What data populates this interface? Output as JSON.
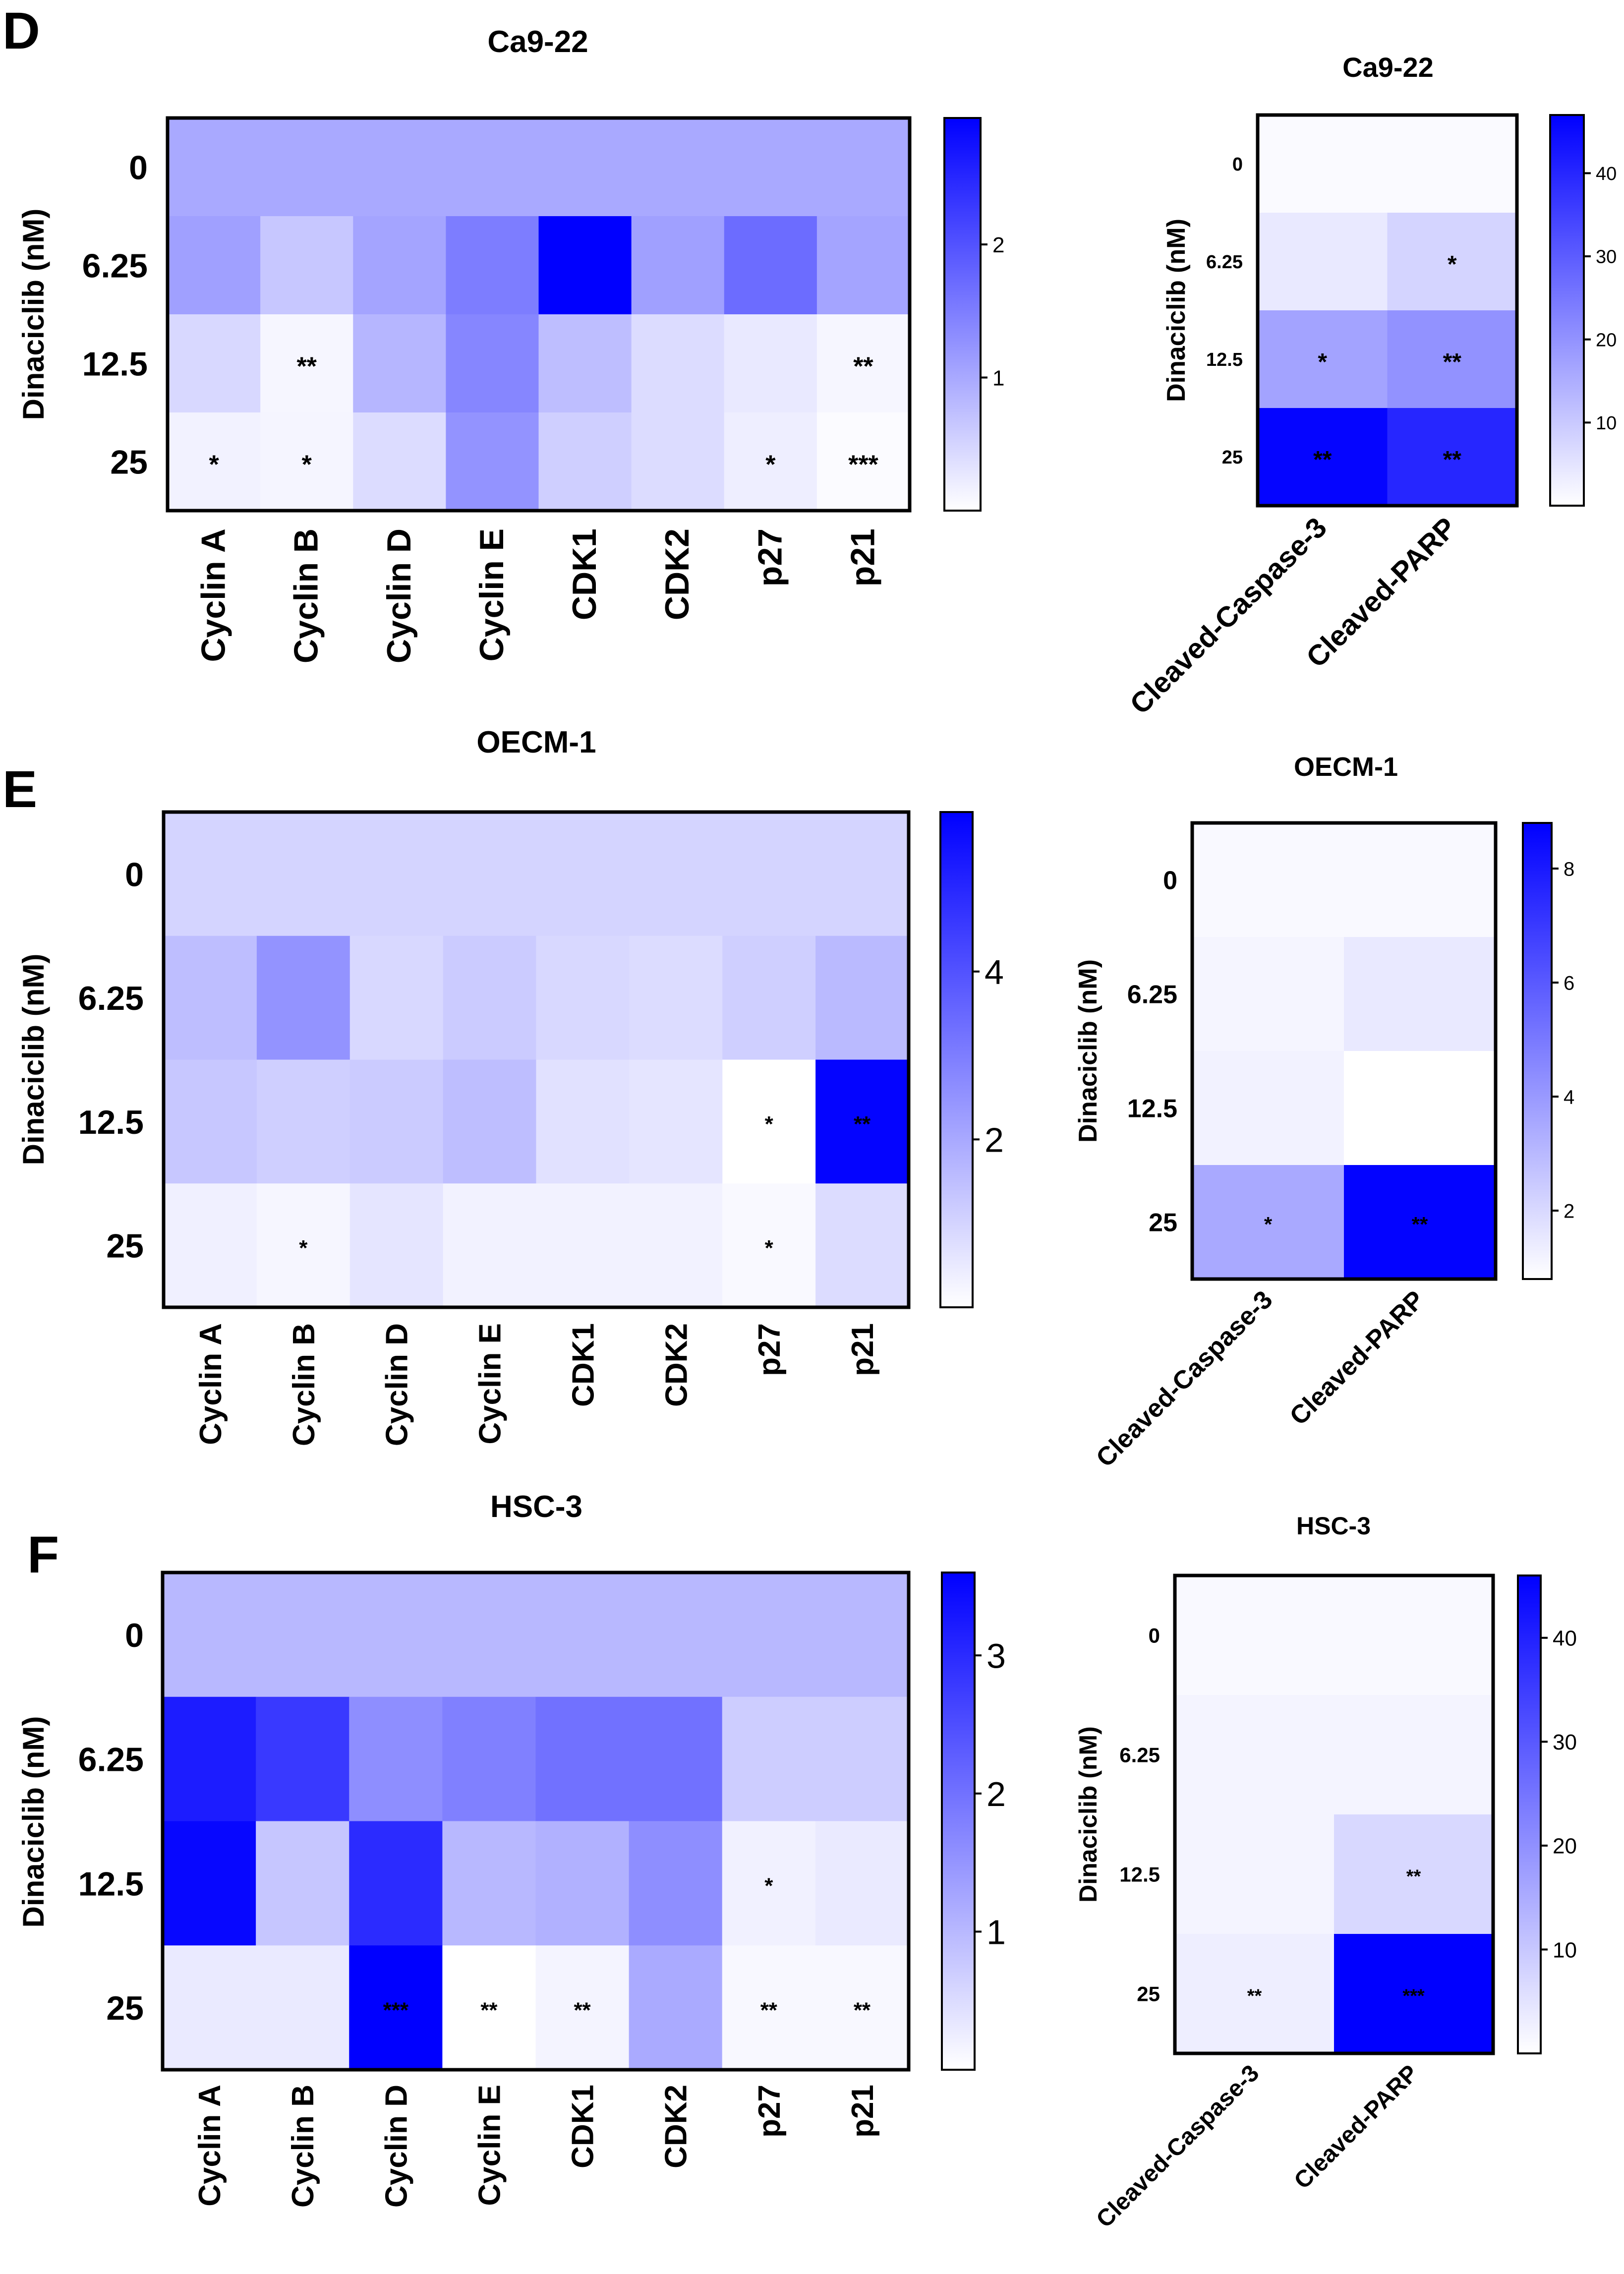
{
  "panels": [
    {
      "letter": "D"
    },
    {
      "letter": "E"
    },
    {
      "letter": "F"
    }
  ],
  "palette": {
    "low": "#ffffff",
    "high": "#0000ff",
    "border": "#000000"
  },
  "chart_data": [
    {
      "type": "heatmap",
      "panel": "D",
      "title": "Ca9-22",
      "ylabel": "Dinaciclib (nM)",
      "rows": [
        "0",
        "6.25",
        "12.5",
        "25"
      ],
      "columns": [
        "Cyclin A",
        "Cyclin B",
        "Cyclin D",
        "Cyclin E",
        "CDK1",
        "CDK2",
        "p27",
        "p21"
      ],
      "values": [
        [
          1.0,
          1.0,
          1.0,
          1.0,
          1.0,
          1.0,
          1.0,
          1.0
        ],
        [
          1.1,
          0.65,
          1.05,
          1.5,
          2.95,
          1.1,
          1.7,
          1.05
        ],
        [
          0.45,
          0.1,
          0.85,
          1.4,
          0.75,
          0.4,
          0.25,
          0.1
        ],
        [
          0.15,
          0.12,
          0.4,
          1.25,
          0.55,
          0.4,
          0.2,
          0.05
        ]
      ],
      "significance": [
        [
          "",
          "",
          "",
          "",
          "",
          "",
          "",
          ""
        ],
        [
          "",
          "",
          "",
          "",
          "",
          "",
          "",
          ""
        ],
        [
          "",
          "**",
          "",
          "",
          "",
          "",
          "",
          "**"
        ],
        [
          "*",
          "*",
          "",
          "",
          "",
          "",
          "*",
          "***"
        ]
      ],
      "colorbar": {
        "min": 0,
        "max": 2.95,
        "ticks": [
          1,
          2
        ]
      }
    },
    {
      "type": "heatmap",
      "panel": "D",
      "title": "Ca9-22",
      "ylabel": "Dinaciclib (nM)",
      "rows": [
        "0",
        "6.25",
        "12.5",
        "25"
      ],
      "columns": [
        "Cleaved-Caspase-3",
        "Cleaved-PARP"
      ],
      "values": [
        [
          1,
          1
        ],
        [
          4,
          8
        ],
        [
          17,
          20
        ],
        [
          46,
          40
        ]
      ],
      "significance": [
        [
          "",
          ""
        ],
        [
          "",
          "*"
        ],
        [
          "*",
          "**"
        ],
        [
          "**",
          "**"
        ]
      ],
      "colorbar": {
        "min": 0,
        "max": 47,
        "ticks": [
          10,
          20,
          30,
          40
        ]
      }
    },
    {
      "type": "heatmap",
      "panel": "E",
      "title": "OECM-1",
      "ylabel": "Dinaciclib (nM)",
      "rows": [
        "0",
        "6.25",
        "12.5",
        "25"
      ],
      "columns": [
        "Cyclin A",
        "Cyclin B",
        "Cyclin D",
        "Cyclin E",
        "CDK1",
        "CDK2",
        "p27",
        "p21"
      ],
      "values": [
        [
          1.0,
          1.0,
          1.0,
          1.0,
          1.0,
          1.0,
          1.0,
          1.0
        ],
        [
          1.5,
          2.5,
          0.9,
          1.2,
          0.9,
          0.8,
          1.1,
          1.6
        ],
        [
          1.3,
          1.1,
          1.2,
          1.5,
          0.7,
          0.6,
          0.0,
          5.8
        ],
        [
          0.35,
          0.2,
          0.6,
          0.3,
          0.3,
          0.3,
          0.15,
          0.8
        ]
      ],
      "significance": [
        [
          "",
          "",
          "",
          "",
          "",
          "",
          "",
          ""
        ],
        [
          "",
          "",
          "",
          "",
          "",
          "",
          "",
          ""
        ],
        [
          "",
          "",
          "",
          "",
          "",
          "",
          "*",
          "**"
        ],
        [
          "",
          "*",
          "",
          "",
          "",
          "",
          "*",
          ""
        ]
      ],
      "colorbar": {
        "min": 0,
        "max": 5.9,
        "ticks": [
          2,
          4
        ]
      }
    },
    {
      "type": "heatmap",
      "panel": "E",
      "title": "OECM-1",
      "ylabel": "Dinaciclib (nM)",
      "rows": [
        "0",
        "6.25",
        "12.5",
        "25"
      ],
      "columns": [
        "Cleaved-Caspase-3",
        "Cleaved-PARP"
      ],
      "values": [
        [
          1.0,
          1.0
        ],
        [
          1.1,
          1.5
        ],
        [
          1.2,
          0.8
        ],
        [
          3.5,
          8.7
        ]
      ],
      "significance": [
        [
          "",
          ""
        ],
        [
          "",
          ""
        ],
        [
          "",
          ""
        ],
        [
          "*",
          "**"
        ]
      ],
      "colorbar": {
        "min": 0.8,
        "max": 8.8,
        "ticks": [
          2,
          4,
          6,
          8
        ]
      }
    },
    {
      "type": "heatmap",
      "panel": "F",
      "title": "HSC-3",
      "ylabel": "Dinaciclib (nM)",
      "rows": [
        "0",
        "6.25",
        "12.5",
        "25"
      ],
      "columns": [
        "Cyclin A",
        "Cyclin B",
        "Cyclin D",
        "Cyclin E",
        "CDK1",
        "CDK2",
        "p27",
        "p21"
      ],
      "values": [
        [
          1.0,
          1.0,
          1.0,
          1.0,
          1.0,
          1.0,
          1.0,
          1.0
        ],
        [
          3.2,
          2.8,
          1.6,
          1.8,
          2.0,
          2.0,
          0.7,
          0.7
        ],
        [
          3.5,
          0.8,
          3.0,
          1.0,
          1.1,
          1.6,
          0.2,
          0.3
        ],
        [
          0.3,
          0.3,
          3.6,
          0.0,
          0.15,
          1.2,
          0.1,
          0.1
        ]
      ],
      "significance": [
        [
          "",
          "",
          "",
          "",
          "",
          "",
          "",
          ""
        ],
        [
          "",
          "",
          "",
          "",
          "",
          "",
          "",
          ""
        ],
        [
          "",
          "",
          "",
          "",
          "",
          "",
          "*",
          ""
        ],
        [
          "",
          "",
          "***",
          "**",
          "**",
          "",
          "**",
          "**"
        ]
      ],
      "colorbar": {
        "min": 0,
        "max": 3.6,
        "ticks": [
          1,
          2,
          3
        ]
      }
    },
    {
      "type": "heatmap",
      "panel": "F",
      "title": "HSC-3",
      "ylabel": "Dinaciclib (nM)",
      "rows": [
        "0",
        "6.25",
        "12.5",
        "25"
      ],
      "columns": [
        "Cleaved-Caspase-3",
        "Cleaved-PARP"
      ],
      "values": [
        [
          1,
          1
        ],
        [
          2,
          2
        ],
        [
          2,
          7
        ],
        [
          3,
          46
        ]
      ],
      "significance": [
        [
          "",
          ""
        ],
        [
          "",
          ""
        ],
        [
          "",
          "**"
        ],
        [
          "**",
          "***"
        ]
      ],
      "colorbar": {
        "min": 0,
        "max": 46,
        "ticks": [
          10,
          20,
          30,
          40
        ]
      }
    }
  ]
}
